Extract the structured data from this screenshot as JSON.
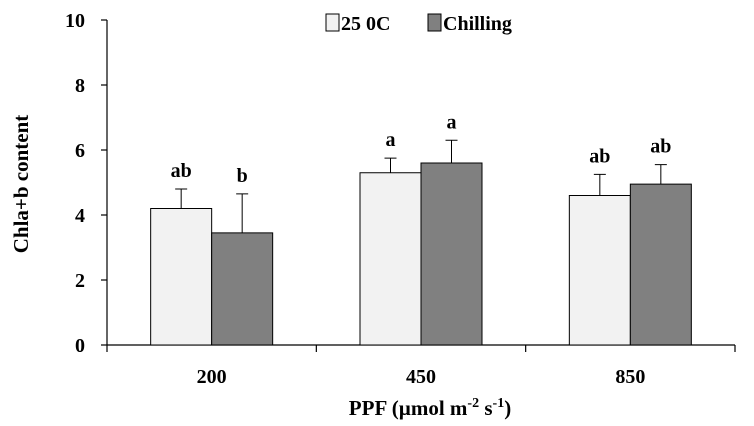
{
  "chart_data": {
    "type": "bar",
    "categories": [
      "200",
      "450",
      "850"
    ],
    "series": [
      {
        "name": "25 0C",
        "values": [
          4.2,
          5.3,
          4.6
        ],
        "errors": [
          0.6,
          0.45,
          0.65
        ],
        "labels": [
          "ab",
          "a",
          "ab"
        ],
        "color": "#f2f2f2"
      },
      {
        "name": "Chilling",
        "values": [
          3.45,
          5.6,
          4.95
        ],
        "errors": [
          1.2,
          0.7,
          0.6
        ],
        "labels": [
          "b",
          "a",
          "ab"
        ],
        "color": "#808080"
      }
    ],
    "ylabel": "Chla+b content",
    "xlabel_parts": {
      "main": "PPF (µmol m",
      "sup1": "-2",
      "mid": " s",
      "sup2": "-1",
      "end": ")"
    },
    "ylim": [
      0,
      10
    ],
    "yticks": [
      "0",
      "2",
      "4",
      "6",
      "8",
      "10"
    ],
    "grid": false,
    "legend_position": "top-center"
  }
}
